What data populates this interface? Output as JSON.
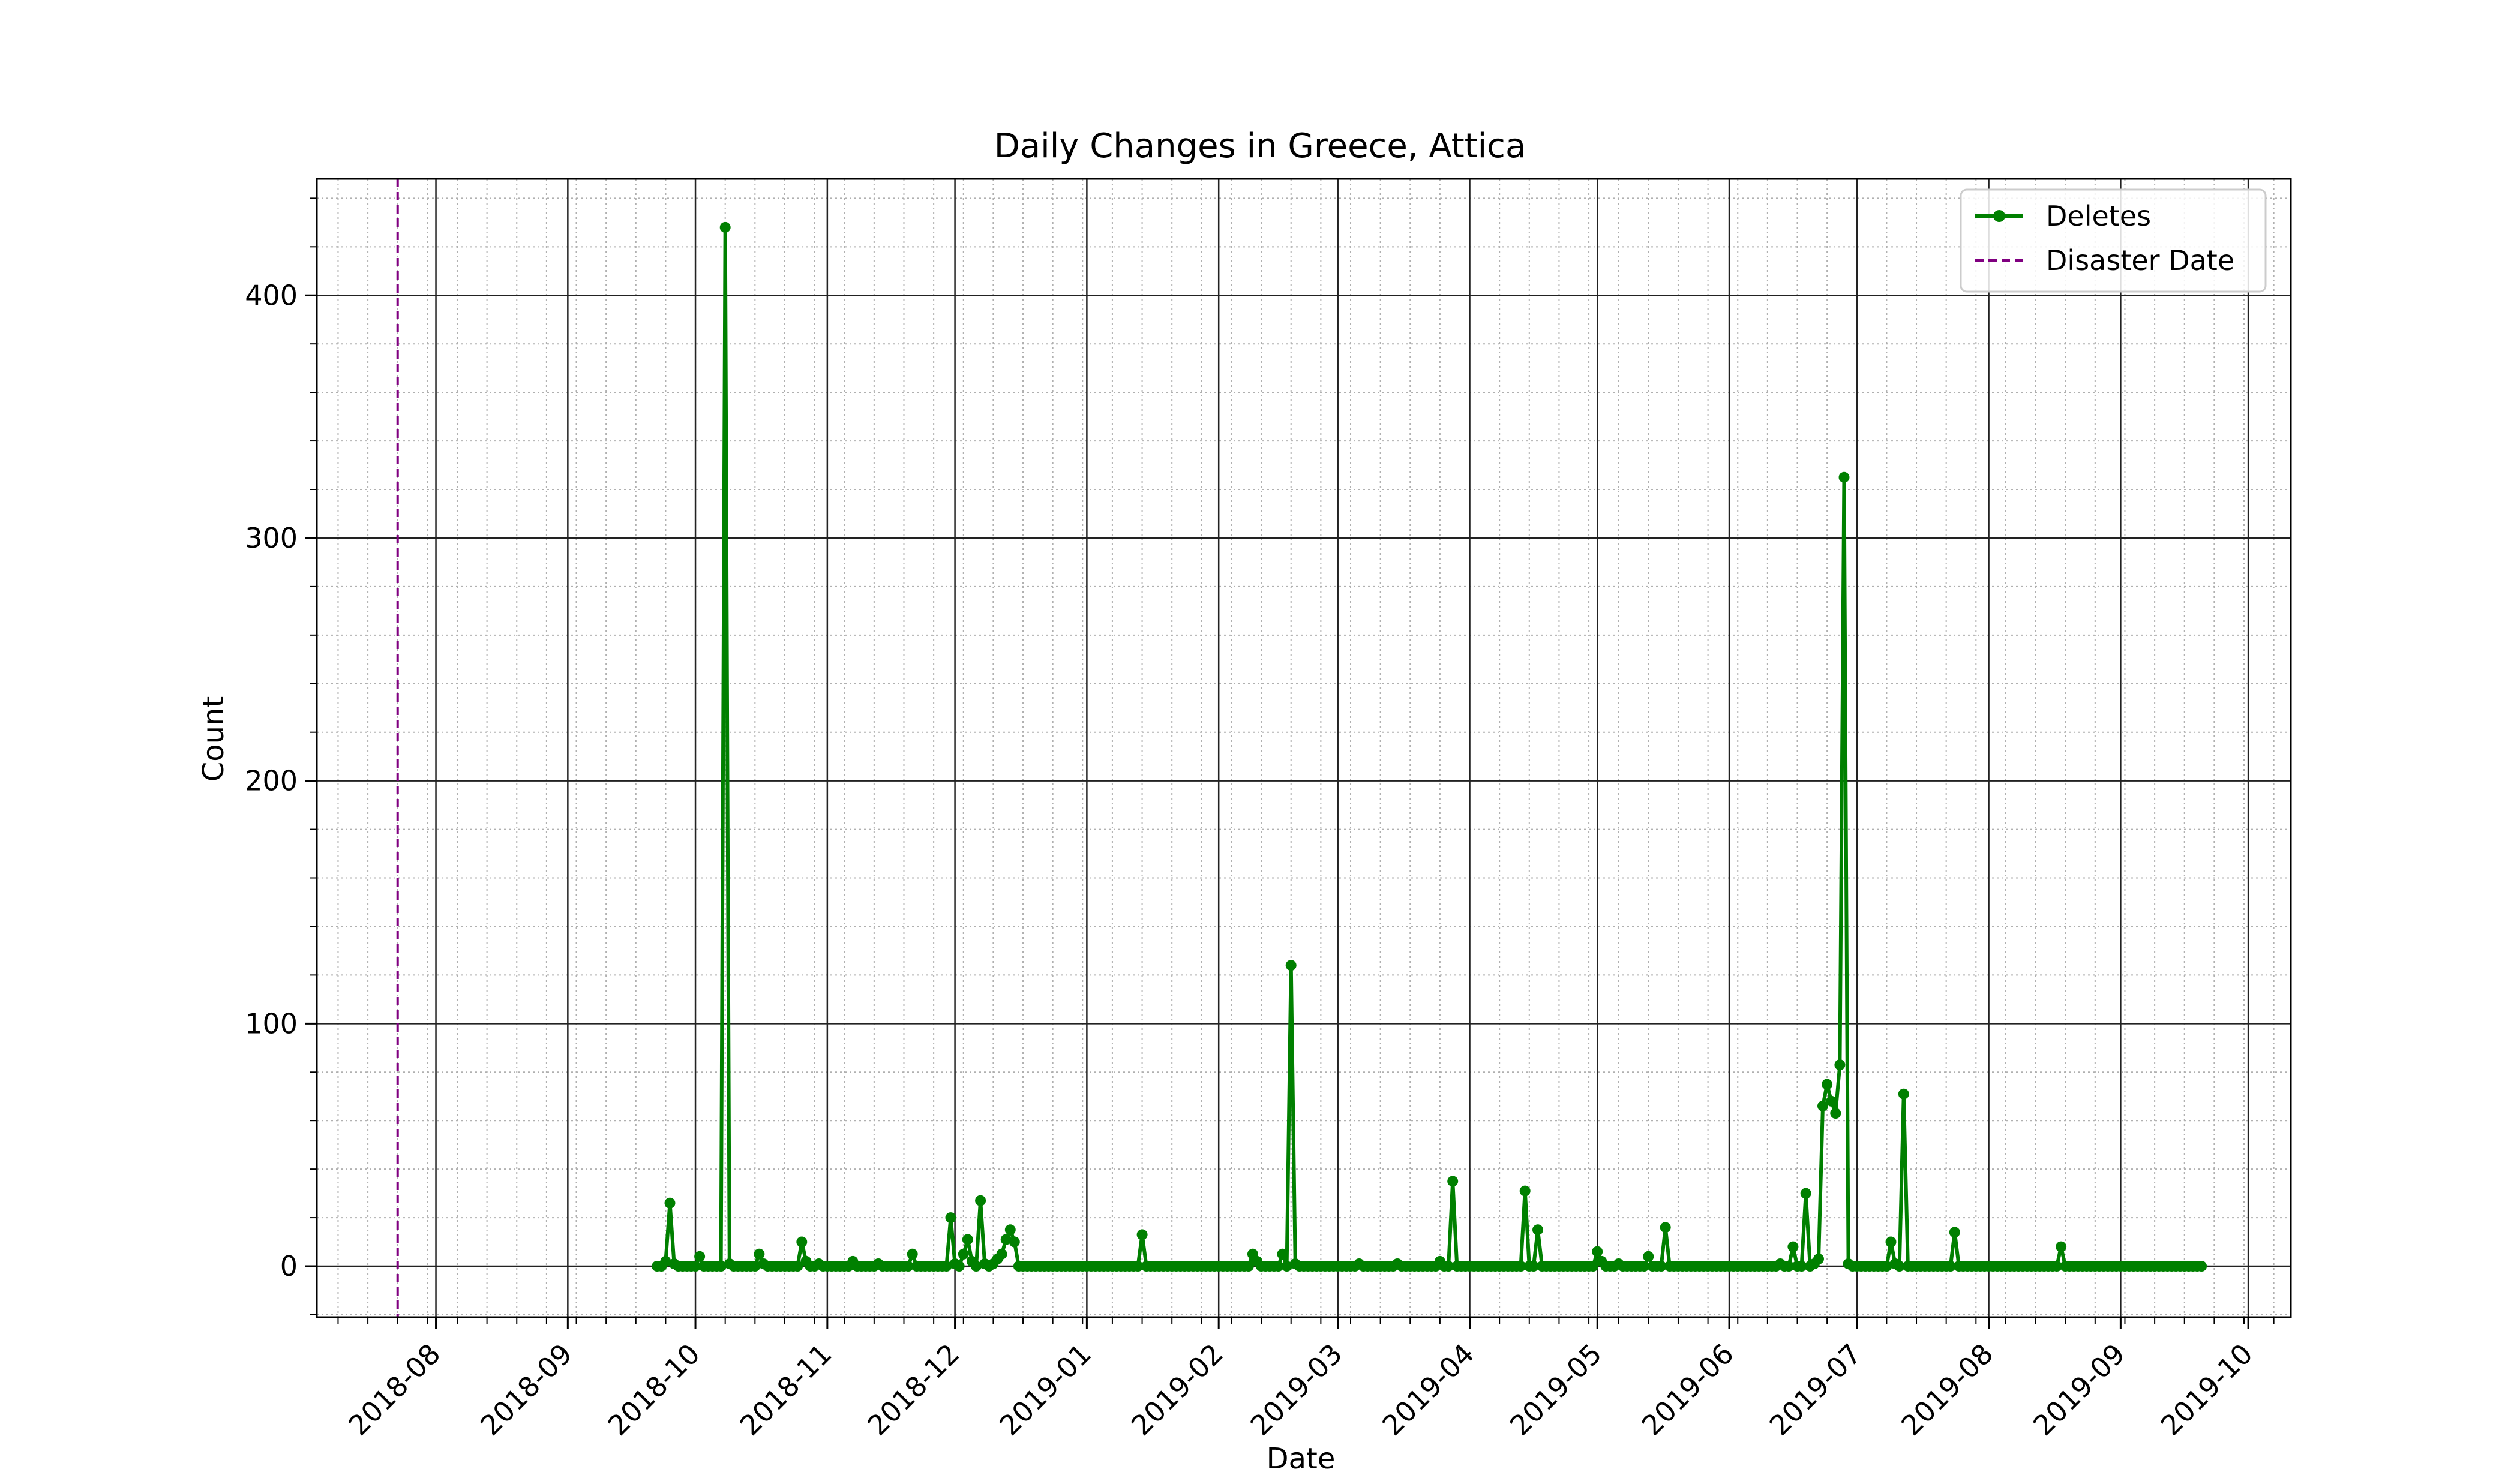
{
  "chart_data": {
    "type": "line",
    "title": "Daily Changes in Greece, Attica",
    "xlabel": "Date",
    "ylabel": "Count",
    "x_range": [
      "2018-07-04",
      "2019-10-11"
    ],
    "ylim": [
      -21,
      448
    ],
    "x_ticks": [
      "2018-08",
      "2018-09",
      "2018-10",
      "2018-11",
      "2018-12",
      "2019-01",
      "2019-02",
      "2019-03",
      "2019-04",
      "2019-05",
      "2019-06",
      "2019-07",
      "2019-08",
      "2019-09",
      "2019-10"
    ],
    "y_ticks": [
      0,
      100,
      200,
      300,
      400
    ],
    "grid": true,
    "legend": {
      "position": "top-right",
      "entries": [
        {
          "label": "Deletes",
          "style": "line-marker"
        },
        {
          "label": "Disaster Date",
          "style": "dashed"
        }
      ]
    },
    "series": [
      {
        "name": "Deletes",
        "color": "#008000",
        "start_date": "2018-09-22",
        "end_date": "2019-09-20",
        "default_value": 0,
        "points": [
          [
            "2018-09-22",
            0
          ],
          [
            "2018-09-23",
            0
          ],
          [
            "2018-09-24",
            2
          ],
          [
            "2018-09-25",
            26
          ],
          [
            "2018-09-26",
            1
          ],
          [
            "2018-10-02",
            4
          ],
          [
            "2018-10-08",
            428
          ],
          [
            "2018-10-09",
            1
          ],
          [
            "2018-10-16",
            5
          ],
          [
            "2018-10-17",
            1
          ],
          [
            "2018-10-26",
            10
          ],
          [
            "2018-10-27",
            2
          ],
          [
            "2018-10-30",
            1
          ],
          [
            "2018-11-07",
            2
          ],
          [
            "2018-11-13",
            1
          ],
          [
            "2018-11-21",
            5
          ],
          [
            "2018-11-30",
            20
          ],
          [
            "2018-12-01",
            1
          ],
          [
            "2018-12-03",
            5
          ],
          [
            "2018-12-04",
            11
          ],
          [
            "2018-12-05",
            2
          ],
          [
            "2018-12-07",
            27
          ],
          [
            "2018-12-08",
            1
          ],
          [
            "2018-12-10",
            1
          ],
          [
            "2018-12-11",
            3
          ],
          [
            "2018-12-12",
            5
          ],
          [
            "2018-12-13",
            11
          ],
          [
            "2018-12-14",
            15
          ],
          [
            "2018-12-15",
            10
          ],
          [
            "2019-01-14",
            13
          ],
          [
            "2019-02-09",
            5
          ],
          [
            "2019-02-10",
            2
          ],
          [
            "2019-02-16",
            5
          ],
          [
            "2019-02-18",
            124
          ],
          [
            "2019-02-19",
            1
          ],
          [
            "2019-03-06",
            1
          ],
          [
            "2019-03-15",
            1
          ],
          [
            "2019-03-25",
            2
          ],
          [
            "2019-03-28",
            35
          ],
          [
            "2019-04-14",
            31
          ],
          [
            "2019-04-17",
            15
          ],
          [
            "2019-05-01",
            6
          ],
          [
            "2019-05-02",
            2
          ],
          [
            "2019-05-06",
            1
          ],
          [
            "2019-05-13",
            4
          ],
          [
            "2019-05-17",
            16
          ],
          [
            "2019-06-13",
            1
          ],
          [
            "2019-06-16",
            8
          ],
          [
            "2019-06-19",
            30
          ],
          [
            "2019-06-21",
            1
          ],
          [
            "2019-06-22",
            3
          ],
          [
            "2019-06-23",
            66
          ],
          [
            "2019-06-24",
            75
          ],
          [
            "2019-06-25",
            68
          ],
          [
            "2019-06-26",
            63
          ],
          [
            "2019-06-27",
            83
          ],
          [
            "2019-06-28",
            325
          ],
          [
            "2019-06-29",
            1
          ],
          [
            "2019-07-09",
            10
          ],
          [
            "2019-07-10",
            1
          ],
          [
            "2019-07-12",
            71
          ],
          [
            "2019-07-24",
            14
          ],
          [
            "2019-08-18",
            8
          ]
        ]
      }
    ],
    "vline": {
      "name": "Disaster Date",
      "date": "2018-07-23",
      "color": "#800080"
    }
  }
}
